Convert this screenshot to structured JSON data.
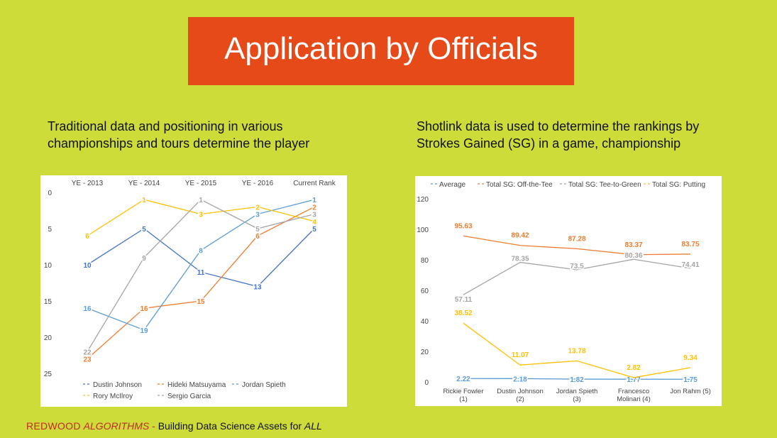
{
  "title": "Application by Officials",
  "subtitles": {
    "left": "Traditional data and positioning in various championships and tours determine the player",
    "right": "Shotlink data is used to determine the rankings by Strokes Gained (SG) in a game, championship"
  },
  "footer": {
    "brand": "REDWOOD",
    "brand_italic": "ALGORITHMS",
    "dash": " - ",
    "text": "Building Data Science Assets for ",
    "emphasis": "ALL"
  },
  "chart_data": [
    {
      "type": "line",
      "title": "",
      "xlabel": "",
      "ylabel": "",
      "categories": [
        "YE - 2013",
        "YE - 2014",
        "YE - 2015",
        "YE - 2016",
        "Current Rank"
      ],
      "y_axis_reversed": true,
      "x_axis_position": "top",
      "ylim": [
        0,
        25
      ],
      "yticks": [
        0,
        5,
        10,
        15,
        20,
        25
      ],
      "grid": false,
      "legend_position": "bottom",
      "series": [
        {
          "name": "Dustin Johnson",
          "color": "#4472c4",
          "values": [
            10,
            5,
            11,
            13,
            5
          ]
        },
        {
          "name": "Hideki Matsuyama",
          "color": "#ed7d31",
          "values": [
            23,
            16,
            15,
            6,
            2
          ]
        },
        {
          "name": "Jordan Spieth",
          "color": "#5b9bd5",
          "values": [
            16,
            19,
            8,
            3,
            1
          ]
        },
        {
          "name": "Rory McIlroy",
          "color": "#ffc000",
          "values": [
            6,
            1,
            3,
            2,
            4
          ]
        },
        {
          "name": "Sergio Garcia",
          "color": "#a5a5a5",
          "values": [
            22,
            9,
            1,
            5,
            3
          ]
        }
      ]
    },
    {
      "type": "line",
      "title": "",
      "xlabel": "",
      "ylabel": "",
      "categories": [
        "Rickie Fowler (1)",
        "Dustin Johnson (2)",
        "Jordan Spieth (3)",
        "Francesco Molinari (4)",
        "Jon Rahm (5)"
      ],
      "ylim": [
        0,
        120
      ],
      "yticks": [
        0,
        20,
        40,
        60,
        80,
        100,
        120
      ],
      "grid": false,
      "legend_position": "top",
      "series": [
        {
          "name": "Average",
          "color": "#5b9bd5",
          "values": [
            2.22,
            2.18,
            1.82,
            1.77,
            1.75
          ]
        },
        {
          "name": "Total SG: Off-the-Tee",
          "color": "#ed7d31",
          "values": [
            95.63,
            89.42,
            87.28,
            83.37,
            83.75
          ]
        },
        {
          "name": "Total SG: Tee-to-Green",
          "color": "#a5a5a5",
          "values": [
            57.11,
            78.35,
            73.5,
            80.36,
            74.41
          ]
        },
        {
          "name": "Total SG: Putting",
          "color": "#ffc000",
          "values": [
            38.52,
            11.07,
            13.78,
            2.82,
            9.34
          ]
        }
      ]
    }
  ]
}
